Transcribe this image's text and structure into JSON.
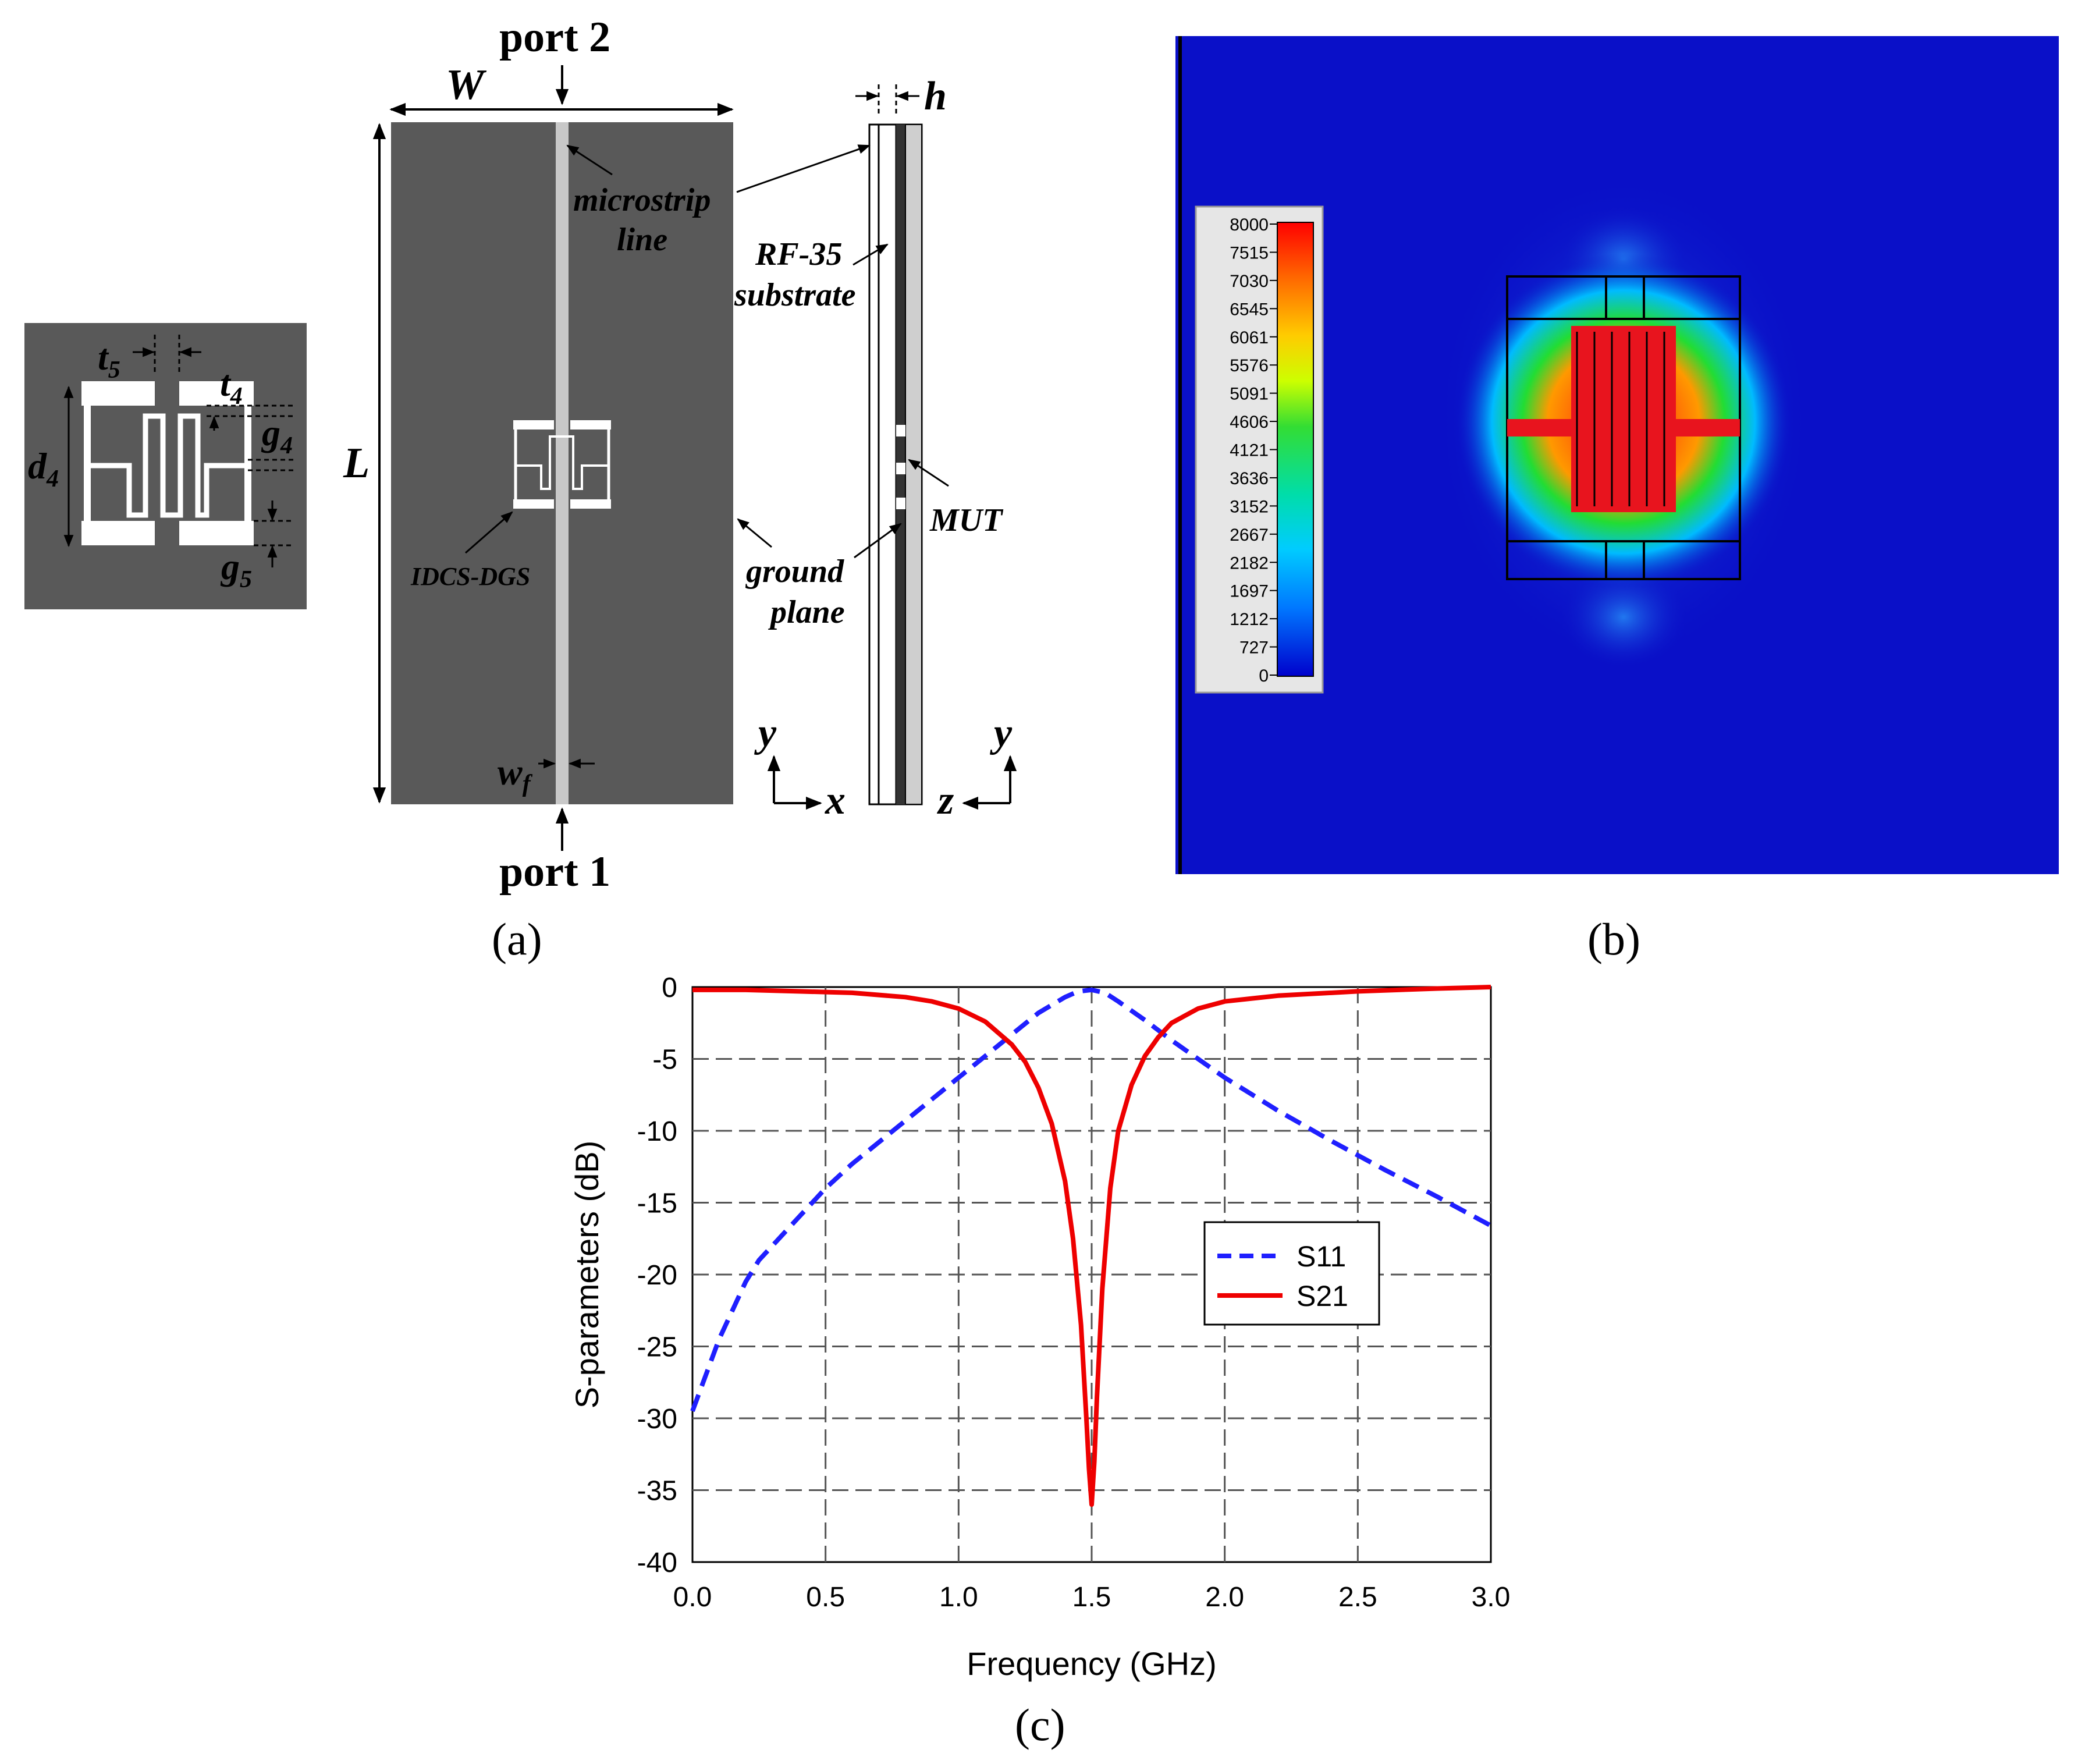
{
  "figure_a": {
    "inset": {
      "t5": "t",
      "t5_sub": "5",
      "t4": "t",
      "t4_sub": "4",
      "g4": "g",
      "g4_sub": "4",
      "d4": "d",
      "d4_sub": "4",
      "g5": "g",
      "g5_sub": "5"
    },
    "top_view": {
      "port2": "port 2",
      "port1": "port 1",
      "W": "W",
      "L": "L",
      "wf": "w",
      "wf_sub": "f",
      "microstrip": "microstrip",
      "line": "line",
      "idcs": "IDCS-DGS",
      "axis_y": "y",
      "axis_x": "x"
    },
    "side_view": {
      "h": "h",
      "rf35": "RF-35",
      "substrate": "substrate",
      "mut": "MUT",
      "ground": "ground",
      "plane": "plane",
      "axis_y": "y",
      "axis_z": "z"
    },
    "caption": "(a)"
  },
  "figure_b": {
    "colorbar_ticks": [
      "8000",
      "7515",
      "7030",
      "6545",
      "6061",
      "5576",
      "5091",
      "4606",
      "4121",
      "3636",
      "3152",
      "2667",
      "2182",
      "1697",
      "1212",
      "727",
      "0"
    ],
    "colors": {
      "background": "#0a10c8",
      "hot": "#e8141e"
    },
    "caption": "(b)"
  },
  "figure_c": {
    "caption": "(c)"
  },
  "chart_data": {
    "type": "line",
    "xlabel": "Frequency (GHz)",
    "ylabel": "S-parameters (dB)",
    "xlim": [
      0,
      3
    ],
    "ylim": [
      -40,
      0
    ],
    "xticks": [
      "0.0",
      "0.5",
      "1.0",
      "1.5",
      "2.0",
      "2.5",
      "3.0"
    ],
    "yticks": [
      "0",
      "-5",
      "-10",
      "-15",
      "-20",
      "-25",
      "-30",
      "-35",
      "-40"
    ],
    "grid": true,
    "legend": "center-right",
    "series": [
      {
        "name": "S11",
        "color": "#1f1fff",
        "style": "dashed",
        "x": [
          0,
          0.05,
          0.1,
          0.15,
          0.2,
          0.25,
          0.3,
          0.4,
          0.5,
          0.6,
          0.7,
          0.8,
          0.9,
          1.0,
          1.1,
          1.2,
          1.3,
          1.4,
          1.45,
          1.5,
          1.55,
          1.6,
          1.7,
          1.8,
          1.9,
          2.0,
          2.2,
          2.4,
          2.6,
          2.8,
          3.0
        ],
        "y": [
          -29.5,
          -27,
          -24.5,
          -22.5,
          -20.5,
          -19,
          -18,
          -16,
          -14,
          -12.3,
          -10.8,
          -9.3,
          -7.8,
          -6.3,
          -4.8,
          -3.3,
          -1.8,
          -0.7,
          -0.3,
          -0.2,
          -0.4,
          -1,
          -2.3,
          -3.7,
          -5,
          -6.3,
          -8.6,
          -10.7,
          -12.7,
          -14.6,
          -16.6
        ]
      },
      {
        "name": "S21",
        "color": "#ee0000",
        "style": "solid",
        "x": [
          0,
          0.2,
          0.4,
          0.6,
          0.8,
          0.9,
          1.0,
          1.1,
          1.2,
          1.25,
          1.3,
          1.35,
          1.4,
          1.43,
          1.46,
          1.48,
          1.49,
          1.5,
          1.51,
          1.52,
          1.54,
          1.57,
          1.6,
          1.65,
          1.7,
          1.75,
          1.8,
          1.9,
          2.0,
          2.2,
          2.5,
          2.8,
          3.0
        ],
        "y": [
          -0.2,
          -0.2,
          -0.3,
          -0.4,
          -0.7,
          -1,
          -1.5,
          -2.4,
          -4,
          -5.2,
          -7,
          -9.5,
          -13.5,
          -17.5,
          -23.5,
          -30,
          -33.5,
          -36,
          -33,
          -28.5,
          -21,
          -14,
          -10,
          -6.8,
          -4.8,
          -3.5,
          -2.5,
          -1.5,
          -1,
          -0.6,
          -0.3,
          -0.1,
          0
        ]
      }
    ]
  }
}
